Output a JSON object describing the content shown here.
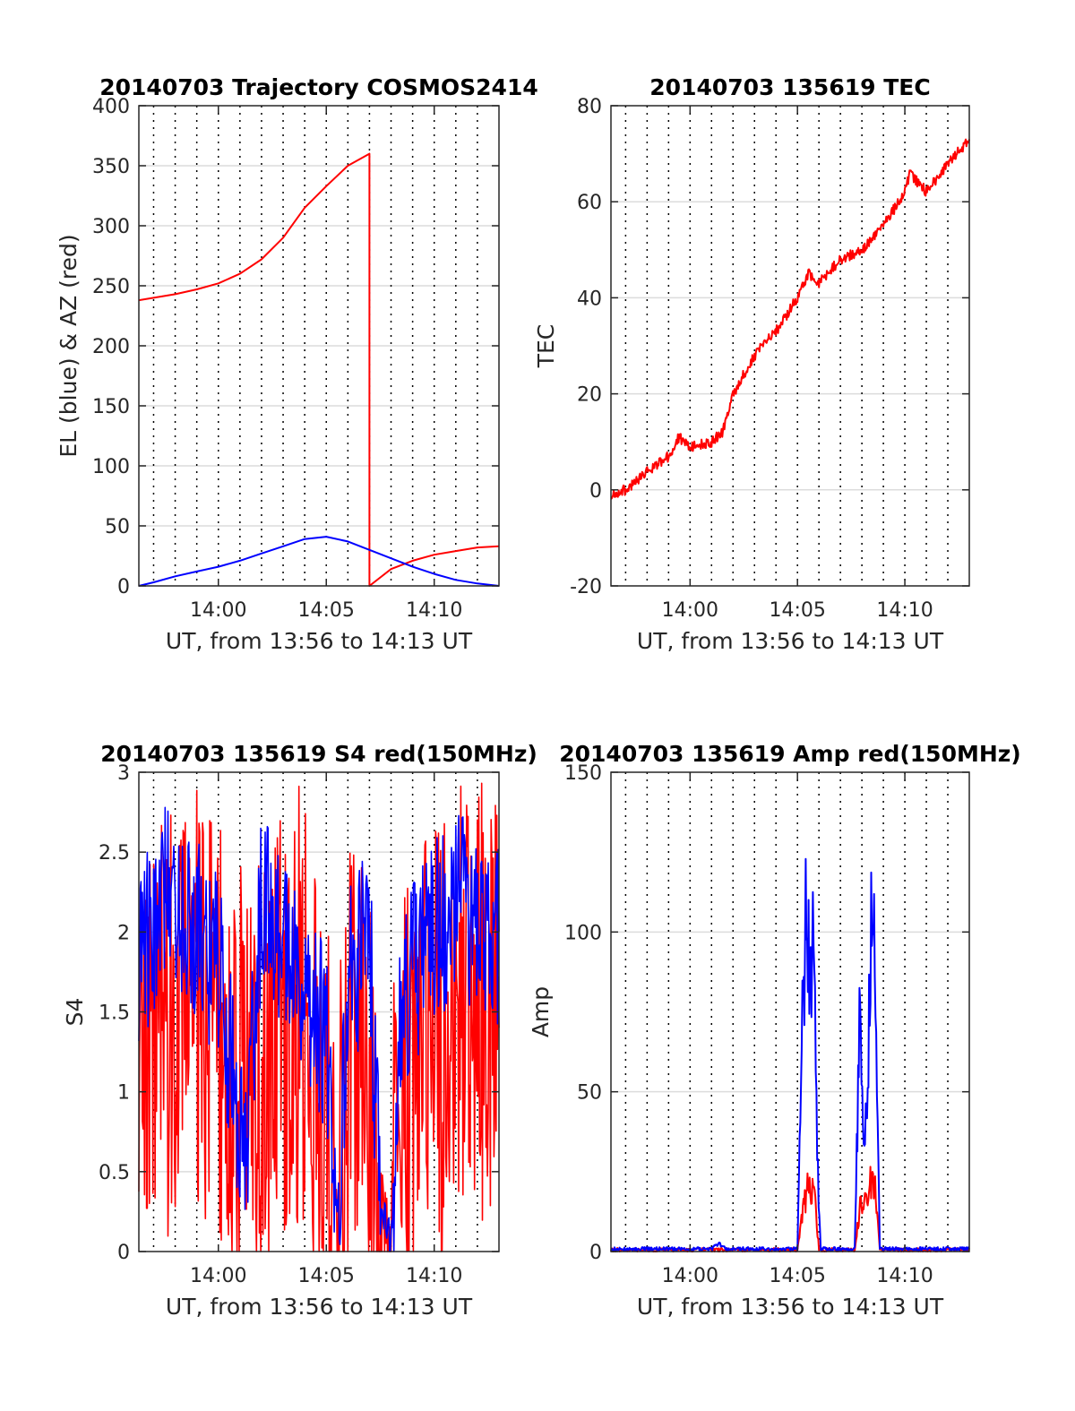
{
  "colors": {
    "red": "#ff0000",
    "blue": "#0000ff",
    "grid": "#dcdcdc",
    "axis": "#262626"
  },
  "chart_data": [
    {
      "id": "trajectory",
      "type": "line",
      "title": "20140703 Trajectory COSMOS2414",
      "xlabel": "UT, from 13:56 to 14:13 UT",
      "ylabel": "EL (blue) & AZ (red)",
      "xlim": [
        "13:56:19",
        "14:13:00"
      ],
      "ylim": [
        0,
        400
      ],
      "yticks": [
        0,
        50,
        100,
        150,
        200,
        250,
        300,
        350,
        400
      ],
      "xticks": [
        "14:00",
        "14:05",
        "14:10"
      ],
      "grid": "horizontal solid, vertical dotted each minute",
      "series": [
        {
          "color": "red",
          "x": [
            "13:56:19",
            "13:57:00",
            "13:58:00",
            "13:59:00",
            "14:00:00",
            "14:01:00",
            "14:02:00",
            "14:03:00",
            "14:04:00",
            "14:05:00",
            "14:06:00",
            "14:07:00",
            "14:07:00",
            "14:08:00",
            "14:09:00",
            "14:10:00",
            "14:11:00",
            "14:12:00",
            "14:13:00"
          ],
          "y": [
            238,
            240,
            243,
            247,
            252,
            260,
            272,
            290,
            315,
            333,
            350,
            360,
            0,
            14,
            21,
            26,
            29,
            32,
            33
          ]
        },
        {
          "color": "blue",
          "x": [
            "13:56:19",
            "13:57:00",
            "13:58:00",
            "13:59:00",
            "14:00:00",
            "14:01:00",
            "14:02:00",
            "14:03:00",
            "14:04:00",
            "14:05:00",
            "14:06:00",
            "14:07:00",
            "14:08:00",
            "14:09:00",
            "14:10:00",
            "14:11:00",
            "14:12:00",
            "14:13:00"
          ],
          "y": [
            0,
            3,
            8,
            12,
            16,
            21,
            27,
            33,
            39,
            41,
            37,
            30,
            23,
            16,
            10,
            5,
            2,
            0
          ]
        }
      ]
    },
    {
      "id": "tec",
      "type": "line",
      "title": "20140703 135619 TEC",
      "xlabel": "UT, from 13:56 to 14:13 UT",
      "ylabel": "TEC",
      "xlim": [
        "13:56:19",
        "14:13:00"
      ],
      "ylim": [
        -20,
        80
      ],
      "yticks": [
        -20,
        0,
        20,
        40,
        60,
        80
      ],
      "xticks": [
        "14:00",
        "14:05",
        "14:10"
      ],
      "grid": "horizontal solid, vertical dotted each minute",
      "series": [
        {
          "color": "red",
          "x": [
            "13:56:19",
            "13:57:00",
            "13:58:00",
            "13:59:00",
            "13:59:30",
            "14:00:00",
            "14:01:00",
            "14:01:30",
            "14:02:00",
            "14:03:00",
            "14:04:00",
            "14:05:00",
            "14:05:30",
            "14:06:00",
            "14:07:00",
            "14:08:00",
            "14:09:00",
            "14:10:00",
            "14:10:15",
            "14:11:00",
            "14:12:00",
            "14:13:00"
          ],
          "y": [
            -1,
            0,
            4,
            7,
            11,
            9,
            10,
            12,
            20,
            28,
            33,
            40,
            45,
            43,
            48,
            50,
            55,
            62,
            66,
            62,
            68,
            73
          ]
        }
      ]
    },
    {
      "id": "s4",
      "type": "line",
      "title": "20140703 135619 S4 red(150MHz)",
      "xlabel": "UT, from 13:56 to 14:13 UT",
      "ylabel": "S4",
      "xlim": [
        "13:56:19",
        "14:13:00"
      ],
      "ylim": [
        0,
        3
      ],
      "yticks": [
        0,
        0.5,
        1,
        1.5,
        2,
        2.5,
        3
      ],
      "xticks": [
        "14:00",
        "14:05",
        "14:10"
      ],
      "grid": "horizontal solid, vertical dotted each minute",
      "series": [
        {
          "color": "red",
          "x": [
            "13:56:19",
            "13:57:00",
            "13:58:00",
            "13:59:00",
            "14:00:00",
            "14:01:00",
            "14:02:00",
            "14:03:00",
            "14:04:00",
            "14:04:30",
            "14:05:00",
            "14:05:30",
            "14:06:00",
            "14:07:00",
            "14:07:30",
            "14:08:00",
            "14:08:30",
            "14:09:00",
            "14:10:00",
            "14:11:00",
            "14:12:00",
            "14:13:00"
          ],
          "y": [
            1.5,
            1.2,
            1.4,
            1.6,
            1.3,
            1.1,
            1.2,
            1.4,
            1.6,
            1.1,
            0.8,
            0.1,
            1.2,
            1.0,
            0.1,
            0.05,
            1.0,
            1.2,
            1.3,
            1.5,
            1.6,
            1.4
          ]
        },
        {
          "color": "blue",
          "x": [
            "13:56:19",
            "13:57:00",
            "13:58:00",
            "13:59:00",
            "14:00:00",
            "14:01:00",
            "14:01:20",
            "14:02:00",
            "14:03:00",
            "14:04:00",
            "14:04:30",
            "14:05:00",
            "14:05:30",
            "14:06:00",
            "14:07:00",
            "14:07:30",
            "14:08:00",
            "14:08:30",
            "14:09:00",
            "14:10:00",
            "14:11:00",
            "14:12:00",
            "14:13:00"
          ],
          "y": [
            1.8,
            2.1,
            2.3,
            2.0,
            1.8,
            0.7,
            0.6,
            2.2,
            2.0,
            1.7,
            1.5,
            1.3,
            0.15,
            1.7,
            2.0,
            0.2,
            0.05,
            1.6,
            1.7,
            2.0,
            2.2,
            2.1,
            2.0
          ]
        }
      ]
    },
    {
      "id": "amp",
      "type": "line",
      "title": "20140703 135619 Amp red(150MHz)",
      "xlabel": "UT, from 13:56 to 14:13 UT",
      "ylabel": "Amp",
      "xlim": [
        "13:56:19",
        "14:13:00"
      ],
      "ylim": [
        0,
        150
      ],
      "yticks": [
        0,
        50,
        100,
        150
      ],
      "xticks": [
        "14:00",
        "14:05",
        "14:10"
      ],
      "grid": "horizontal solid, vertical dotted each minute",
      "series": [
        {
          "color": "red",
          "x": [
            "13:56:19",
            "14:05:00",
            "14:05:15",
            "14:05:30",
            "14:05:50",
            "14:06:00",
            "14:07:40",
            "14:07:55",
            "14:08:20",
            "14:08:35",
            "14:08:50",
            "14:13:00"
          ],
          "y": [
            0.5,
            0.5,
            12,
            22,
            15,
            0.5,
            0.5,
            14,
            20,
            24,
            0.5,
            0.5
          ]
        },
        {
          "color": "blue",
          "x": [
            "13:56:19",
            "14:01:00",
            "14:01:20",
            "14:01:40",
            "14:05:00",
            "14:05:10",
            "14:05:25",
            "14:05:35",
            "14:05:45",
            "14:05:55",
            "14:06:05",
            "14:07:40",
            "14:07:55",
            "14:08:05",
            "14:08:20",
            "14:08:30",
            "14:08:40",
            "14:08:50",
            "14:13:00"
          ],
          "y": [
            0.8,
            0.8,
            2.5,
            0.8,
            0.8,
            60,
            104,
            85,
            95,
            30,
            0.8,
            0.8,
            80,
            40,
            70,
            106,
            70,
            0.8,
            0.8
          ]
        }
      ]
    }
  ]
}
